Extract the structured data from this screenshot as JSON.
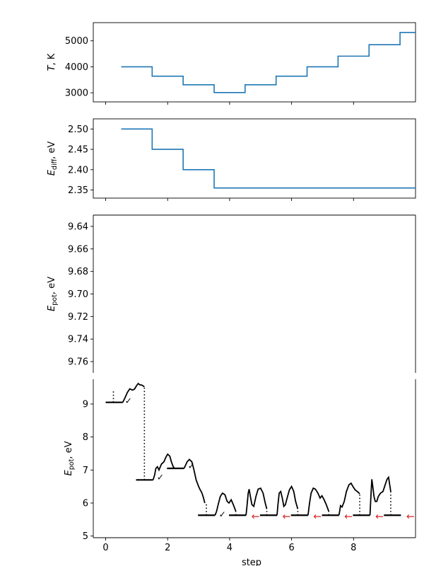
{
  "chart_data": [
    {
      "type": "line",
      "panel": "temperature",
      "ylabel_main": "T",
      "ylabel_unit": ", K",
      "xlim": [
        -0.4,
        10
      ],
      "ylim": [
        2650,
        5700
      ],
      "yticks": [
        3000,
        4000,
        5000
      ],
      "yticklabels": [
        "3000",
        "4000",
        "5000"
      ],
      "color": "#1f77b4",
      "x": [
        0.5,
        1.5,
        2.5,
        3.5,
        4.5,
        5.5,
        6.5,
        7.5,
        8.5,
        9.5,
        10
      ],
      "y": [
        4000,
        3640,
        3310,
        3010,
        3310,
        3640,
        4000,
        4410,
        4850,
        5320,
        5320
      ]
    },
    {
      "type": "line",
      "panel": "diffusion-energy",
      "ylabel_main": "E",
      "ylabel_sub": "diff",
      "ylabel_unit": ", eV",
      "xlim": [
        -0.4,
        10
      ],
      "ylim": [
        2.33,
        2.525
      ],
      "yticks": [
        2.35,
        2.4,
        2.45,
        2.5
      ],
      "yticklabels": [
        "2.35",
        "2.40",
        "2.45",
        "2.50"
      ],
      "color": "#1f77b4",
      "x": [
        0.5,
        1.5,
        2.5,
        3.5,
        10
      ],
      "y": [
        2.5,
        2.45,
        2.4,
        2.355,
        2.355
      ]
    },
    {
      "type": "line",
      "panel": "potential-energy-broken-axis",
      "ylabel_main": "E",
      "ylabel_sub": "pot",
      "ylabel_unit": ", eV",
      "xlabel": "step",
      "xlim": [
        -0.4,
        10
      ],
      "xticks": [
        0,
        2,
        4,
        6,
        8
      ],
      "xticklabels": [
        "0",
        "2",
        "4",
        "6",
        "8"
      ],
      "upper_ylim": [
        9.63,
        9.77
      ],
      "upper_yticks": [
        9.64,
        9.66,
        9.68,
        9.7,
        9.72,
        9.74,
        9.76
      ],
      "upper_yticklabels": [
        "9.64",
        "9.66",
        "9.68",
        "9.70",
        "9.72",
        "9.74",
        "9.76"
      ],
      "upper_inverted": true,
      "lower_ylim": [
        4.95,
        9.75
      ],
      "lower_yticks": [
        5,
        6,
        7,
        8,
        9
      ],
      "lower_yticklabels": [
        "5",
        "6",
        "7",
        "8",
        "9"
      ],
      "levels": [
        {
          "x0": 0,
          "x1": 0.55,
          "y": 9.05
        },
        {
          "x0": 0.98,
          "x1": 1.53,
          "y": 6.7
        },
        {
          "x0": 1.98,
          "x1": 2.53,
          "y": 7.05
        },
        {
          "x0": 2.98,
          "x1": 3.53,
          "y": 5.63
        },
        {
          "x0": 3.98,
          "x1": 4.53,
          "y": 5.63
        },
        {
          "x0": 4.98,
          "x1": 5.53,
          "y": 5.63
        },
        {
          "x0": 5.98,
          "x1": 6.53,
          "y": 5.63
        },
        {
          "x0": 6.98,
          "x1": 7.53,
          "y": 5.63
        },
        {
          "x0": 7.98,
          "x1": 8.53,
          "y": 5.63
        },
        {
          "x0": 8.98,
          "x1": 9.53,
          "y": 5.63
        }
      ],
      "paths": [
        {
          "x": [
            0.55,
            0.62,
            0.7,
            0.78,
            0.86,
            0.93,
            1.0,
            1.05,
            1.1,
            1.17,
            1.25
          ],
          "y": [
            9.05,
            9.18,
            9.35,
            9.46,
            9.42,
            9.45,
            9.56,
            9.62,
            9.58,
            9.57,
            9.52
          ]
        },
        {
          "x": [
            1.53,
            1.58,
            1.62,
            1.67,
            1.72,
            1.8,
            1.88,
            1.95,
            2.0,
            2.07,
            2.12,
            2.18,
            2.22
          ],
          "y": [
            6.7,
            6.85,
            7.05,
            7.1,
            7.0,
            7.18,
            7.25,
            7.4,
            7.48,
            7.42,
            7.25,
            7.1,
            7.05
          ]
        },
        {
          "x": [
            2.53,
            2.58,
            2.63,
            2.7,
            2.78,
            2.85,
            2.92,
            3.0,
            3.05,
            3.1,
            3.15,
            3.2
          ],
          "y": [
            7.05,
            7.15,
            7.25,
            7.32,
            7.25,
            7.0,
            6.7,
            6.5,
            6.4,
            6.32,
            6.18,
            6.0
          ]
        },
        {
          "x": [
            3.53,
            3.58,
            3.63,
            3.7,
            3.77,
            3.85,
            3.92,
            3.98,
            4.05,
            4.12,
            4.2
          ],
          "y": [
            5.63,
            5.75,
            5.95,
            6.2,
            6.3,
            6.25,
            6.05,
            6.0,
            6.1,
            5.95,
            5.75
          ]
        },
        {
          "x": [
            4.53,
            4.56,
            4.6,
            4.63,
            4.67,
            4.72,
            4.78,
            4.85,
            4.92,
            5.0,
            5.08,
            5.15,
            5.2
          ],
          "y": [
            5.63,
            5.9,
            6.3,
            6.42,
            6.2,
            5.95,
            5.9,
            6.2,
            6.42,
            6.45,
            6.3,
            6.0,
            5.82
          ]
        },
        {
          "x": [
            5.53,
            5.56,
            5.6,
            5.65,
            5.7,
            5.75,
            5.8,
            5.87,
            5.93,
            6.0,
            6.07,
            6.13,
            6.2
          ],
          "y": [
            5.63,
            5.95,
            6.3,
            6.35,
            6.15,
            5.9,
            5.95,
            6.2,
            6.4,
            6.5,
            6.35,
            6.05,
            5.82
          ]
        },
        {
          "x": [
            6.53,
            6.58,
            6.63,
            6.7,
            6.77,
            6.85,
            6.92,
            6.98,
            7.05,
            7.12,
            7.2
          ],
          "y": [
            5.63,
            6.0,
            6.3,
            6.45,
            6.42,
            6.3,
            6.15,
            6.22,
            6.1,
            5.95,
            5.75
          ]
        },
        {
          "x": [
            7.53,
            7.58,
            7.63,
            7.7,
            7.77,
            7.85,
            7.92,
            7.98,
            8.05,
            8.12,
            8.2
          ],
          "y": [
            5.63,
            5.92,
            5.88,
            6.05,
            6.35,
            6.55,
            6.6,
            6.5,
            6.4,
            6.35,
            6.28
          ]
        },
        {
          "x": [
            8.53,
            8.56,
            8.59,
            8.62,
            8.66,
            8.7,
            8.75,
            8.8,
            8.87,
            8.95,
            9.02,
            9.08,
            9.13,
            9.2
          ],
          "y": [
            5.63,
            6.2,
            6.72,
            6.5,
            6.2,
            6.05,
            6.05,
            6.2,
            6.3,
            6.35,
            6.55,
            6.72,
            6.78,
            6.35
          ]
        }
      ],
      "dotted": [
        {
          "x": 0.25,
          "y0": 9.05,
          "y1": 9.4
        },
        {
          "x": 1.25,
          "y0": 6.7,
          "y1": 9.52
        },
        {
          "x": 2.22,
          "y0": 7.05,
          "y1": 7.05
        },
        {
          "x": 3.25,
          "y0": 5.63,
          "y1": 6.0
        },
        {
          "x": 4.2,
          "y0": 5.63,
          "y1": 5.75
        },
        {
          "x": 5.2,
          "y0": 5.63,
          "y1": 5.82
        },
        {
          "x": 6.2,
          "y0": 5.63,
          "y1": 5.82
        },
        {
          "x": 7.2,
          "y0": 5.63,
          "y1": 5.75
        },
        {
          "x": 8.2,
          "y0": 5.63,
          "y1": 6.28
        },
        {
          "x": 9.2,
          "y0": 5.63,
          "y1": 6.35
        }
      ],
      "marks": [
        {
          "x": 0.62,
          "y": 9.12,
          "symbol": "✓",
          "color": "#000000"
        },
        {
          "x": 1.65,
          "y": 6.8,
          "symbol": "✓",
          "color": "#000000"
        },
        {
          "x": 2.65,
          "y": 7.15,
          "symbol": "✓",
          "color": "#000000"
        },
        {
          "x": 3.65,
          "y": 5.68,
          "symbol": "✓",
          "color": "#000000"
        },
        {
          "x": 4.7,
          "y": 5.6,
          "symbol": "←",
          "color": "#d62728"
        },
        {
          "x": 5.7,
          "y": 5.6,
          "symbol": "←",
          "color": "#d62728"
        },
        {
          "x": 6.7,
          "y": 5.6,
          "symbol": "←",
          "color": "#d62728"
        },
        {
          "x": 7.7,
          "y": 5.6,
          "symbol": "←",
          "color": "#d62728"
        },
        {
          "x": 8.7,
          "y": 5.6,
          "symbol": "←",
          "color": "#d62728"
        },
        {
          "x": 9.7,
          "y": 5.6,
          "symbol": "←",
          "color": "#d62728"
        }
      ]
    }
  ]
}
